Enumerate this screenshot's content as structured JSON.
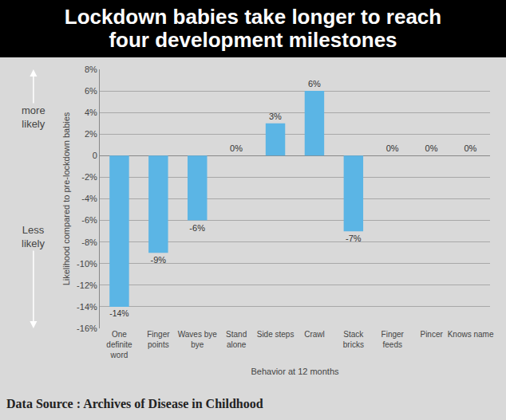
{
  "chart_data": {
    "type": "bar",
    "title": "Lockdown babies take longer to reach four development milestones",
    "x_label": "Behavior at 12 months",
    "y_label": "Likelihood compared to pre-lockdown babies",
    "annotations": [
      "more likely",
      "Less likely"
    ],
    "source": "Data Source : Archives of Disease in Childhood",
    "categories": [
      "One definite word",
      "Finger points",
      "Waves bye bye",
      "Stand alone",
      "Side steps",
      "Crawl",
      "Stack bricks",
      "Finger feeds",
      "Pincer",
      "Knows name"
    ],
    "values": [
      -14,
      -9,
      -6,
      0,
      3,
      6,
      -7,
      0,
      0,
      0
    ],
    "value_labels": [
      "-14%",
      "-9%",
      "-6%",
      "0%",
      "3%",
      "6%",
      "-7%",
      "0%",
      "0%",
      "0%"
    ],
    "color": "#5bb5e5",
    "ylim": [
      -16,
      8
    ],
    "yticks": [
      {
        "value": -16,
        "label": "-16%"
      },
      {
        "value": -14,
        "label": "-14%"
      },
      {
        "value": -12,
        "label": "-12%"
      },
      {
        "value": -10,
        "label": "-10%"
      },
      {
        "value": -8,
        "label": "-8%"
      },
      {
        "value": -6,
        "label": "-6%"
      },
      {
        "value": -4,
        "label": "-4%"
      },
      {
        "value": -2,
        "label": "-2%"
      },
      0,
      {
        "value": 2,
        "label": "2%"
      },
      {
        "value": 4,
        "label": "4%"
      },
      {
        "value": 6,
        "label": "6%"
      },
      {
        "value": 8,
        "label": "8%"
      }
    ],
    "grid": true,
    "data_labels": true
  }
}
